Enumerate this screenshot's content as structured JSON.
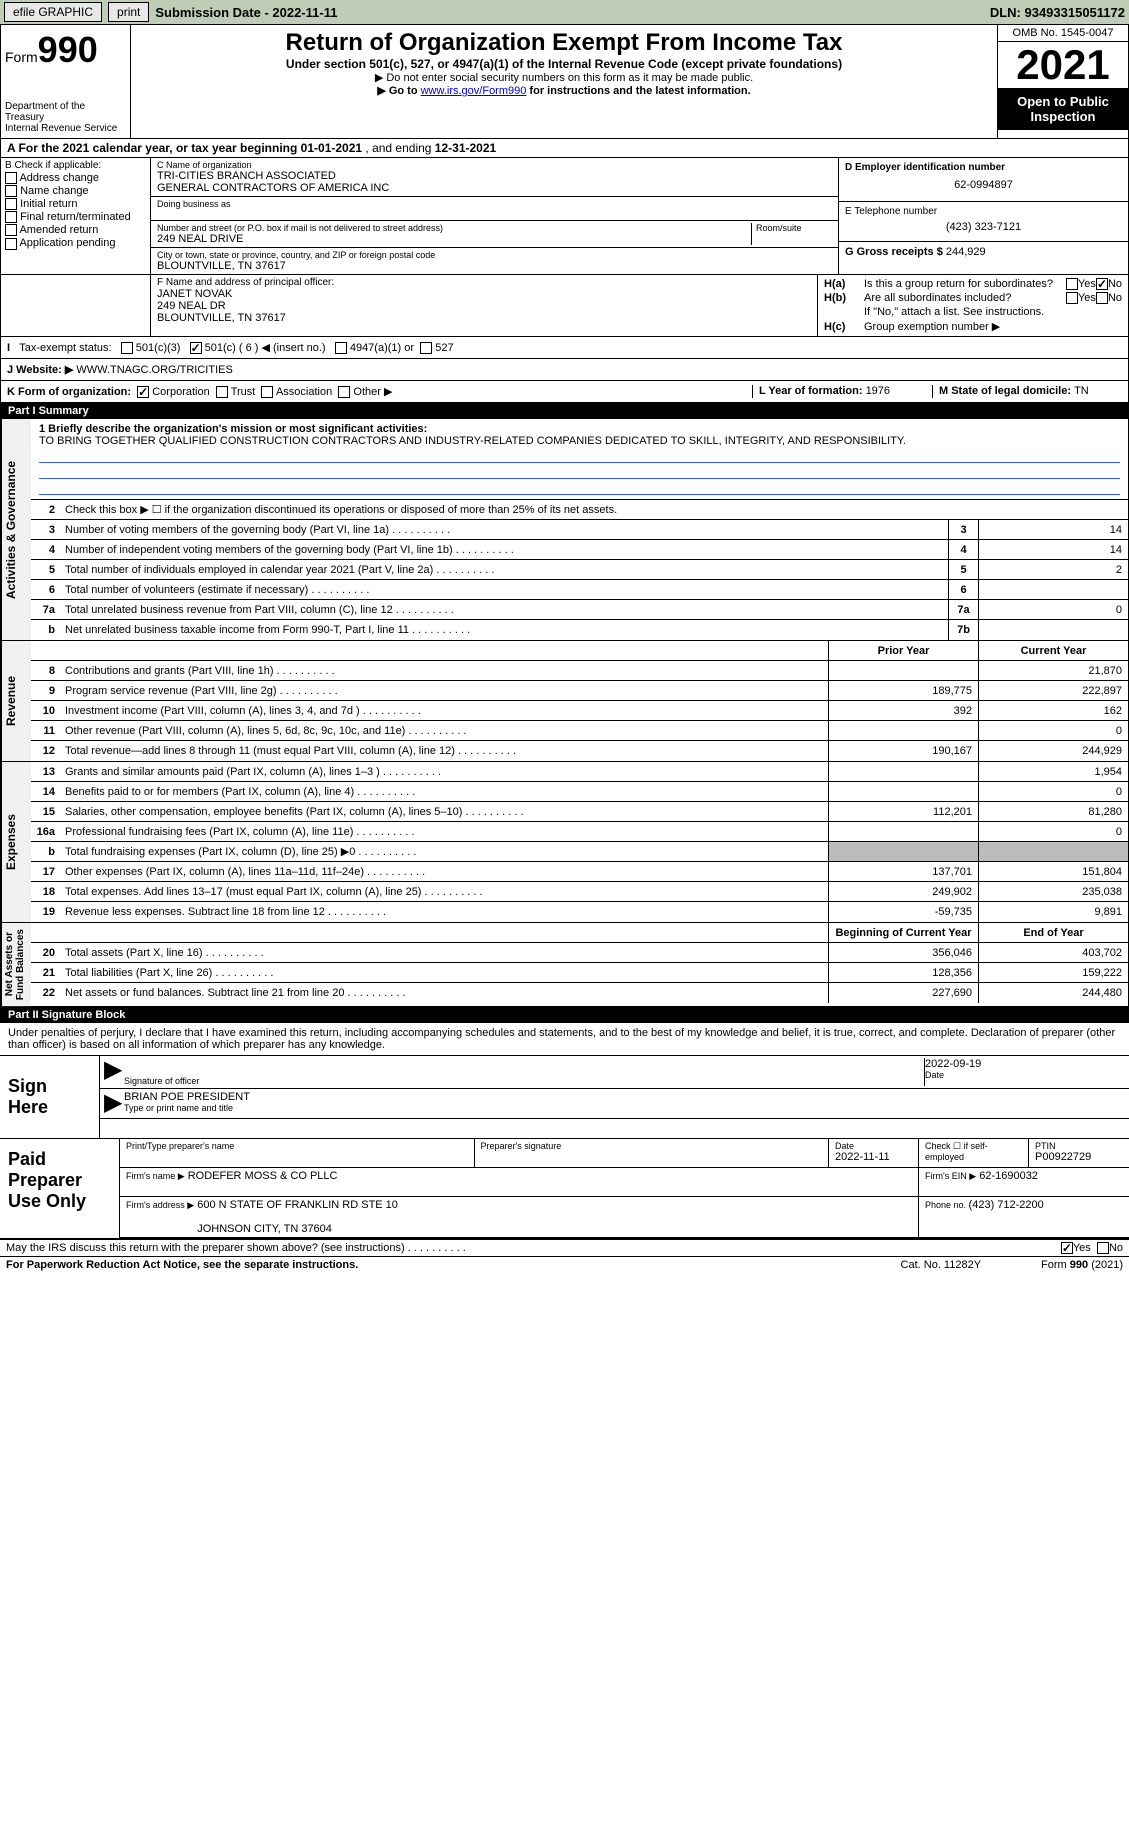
{
  "topbar": {
    "efile": "efile GRAPHIC",
    "print": "print",
    "subdate_lbl": "Submission Date - ",
    "subdate": "2022-11-11",
    "dln_lbl": "DLN: ",
    "dln": "93493315051172"
  },
  "header": {
    "form_lbl": "Form",
    "form_num": "990",
    "dept": "Department of the Treasury\nInternal Revenue Service",
    "title": "Return of Organization Exempt From Income Tax",
    "subtitle": "Under section 501(c), 527, or 4947(a)(1) of the Internal Revenue Code (except private foundations)",
    "note1": "▶ Do not enter social security numbers on this form as it may be made public.",
    "note2_pre": "▶ Go to ",
    "note2_link": "www.irs.gov/Form990",
    "note2_post": " for instructions and the latest information.",
    "omb": "OMB No. 1545-0047",
    "year": "2021",
    "open": "Open to Public\nInspection"
  },
  "rowA": {
    "text_pre": "A For the 2021 calendar year, or tax year beginning ",
    "begin": "01-01-2021",
    "mid": "   , and ending ",
    "end": "12-31-2021"
  },
  "colB": {
    "title": "B Check if applicable:",
    "opts": [
      "Address change",
      "Name change",
      "Initial return",
      "Final return/terminated",
      "Amended return",
      "Application pending"
    ]
  },
  "colC": {
    "name_lbl": "C Name of organization",
    "name": "TRI-CITIES BRANCH ASSOCIATED\nGENERAL CONTRACTORS OF AMERICA INC",
    "dba_lbl": "Doing business as",
    "addr_lbl": "Number and street (or P.O. box if mail is not delivered to street address)",
    "room_lbl": "Room/suite",
    "addr": "249 NEAL DRIVE",
    "city_lbl": "City or town, state or province, country, and ZIP or foreign postal code",
    "city": "BLOUNTVILLE, TN   37617"
  },
  "colDE": {
    "d_lbl": "D Employer identification number",
    "d_val": "62-0994897",
    "e_lbl": "E Telephone number",
    "e_val": "(423) 323-7121",
    "g_lbl": "G Gross receipts $ ",
    "g_val": "244,929"
  },
  "rowF": {
    "f_lbl": "F  Name and address of principal officer:",
    "f_name": "JANET NOVAK",
    "f_addr": "249 NEAL DR\nBLOUNTVILLE, TN   37617",
    "ha_lbl": "H(a)",
    "ha_txt": "Is this a group return for subordinates?",
    "hb_lbl": "H(b)",
    "hb_txt": "Are all subordinates included?",
    "hb_note": "If \"No,\" attach a list. See instructions.",
    "hc_lbl": "H(c)",
    "hc_txt": "Group exemption number ▶",
    "yes": "Yes",
    "no": "No"
  },
  "taxStatus": {
    "i_lbl": "I",
    "label": "Tax-exempt status:",
    "o1": "501(c)(3)",
    "o2": "501(c) ( 6 ) ◀ (insert no.)",
    "o3": "4947(a)(1) or",
    "o4": "527",
    "j_lbl": "J  Website: ▶",
    "j_val": "  WWW.TNAGC.ORG/TRICITIES"
  },
  "rowK": {
    "k_lbl": "K Form of organization:",
    "o1": "Corporation",
    "o2": "Trust",
    "o3": "Association",
    "o4": "Other ▶",
    "l_lbl": "L Year of formation: ",
    "l_val": "1976",
    "m_lbl": "M State of legal domicile: ",
    "m_val": "TN"
  },
  "part1": {
    "title": "Part I      Summary",
    "mission_lbl": "1  Briefly describe the organization's mission or most significant activities:",
    "mission": "TO BRING TOGETHER QUALIFIED CONSTRUCTION CONTRACTORS AND INDUSTRY-RELATED COMPANIES DEDICATED TO SKILL, INTEGRITY, AND RESPONSIBILITY.",
    "line2": "Check this box ▶ ☐  if the organization discontinued its operations or disposed of more than 25% of its net assets.",
    "side_gov": "Activities & Governance",
    "side_rev": "Revenue",
    "side_exp": "Expenses",
    "side_net": "Net Assets or\nFund Balances",
    "lines_gov": [
      {
        "n": "3",
        "d": "Number of voting members of the governing body (Part VI, line 1a)",
        "b": "3",
        "v": "14"
      },
      {
        "n": "4",
        "d": "Number of independent voting members of the governing body (Part VI, line 1b)",
        "b": "4",
        "v": "14"
      },
      {
        "n": "5",
        "d": "Total number of individuals employed in calendar year 2021 (Part V, line 2a)",
        "b": "5",
        "v": "2"
      },
      {
        "n": "6",
        "d": "Total number of volunteers (estimate if necessary)",
        "b": "6",
        "v": ""
      },
      {
        "n": "7a",
        "d": "Total unrelated business revenue from Part VIII, column (C), line 12",
        "b": "7a",
        "v": "0"
      },
      {
        "n": "b",
        "d": "Net unrelated business taxable income from Form 990-T, Part I, line 11",
        "b": "7b",
        "v": ""
      }
    ],
    "col_prior": "Prior Year",
    "col_curr": "Current Year",
    "lines_rev": [
      {
        "n": "8",
        "d": "Contributions and grants (Part VIII, line 1h)",
        "p": "",
        "c": "21,870"
      },
      {
        "n": "9",
        "d": "Program service revenue (Part VIII, line 2g)",
        "p": "189,775",
        "c": "222,897"
      },
      {
        "n": "10",
        "d": "Investment income (Part VIII, column (A), lines 3, 4, and 7d )",
        "p": "392",
        "c": "162"
      },
      {
        "n": "11",
        "d": "Other revenue (Part VIII, column (A), lines 5, 6d, 8c, 9c, 10c, and 11e)",
        "p": "",
        "c": "0"
      },
      {
        "n": "12",
        "d": "Total revenue—add lines 8 through 11 (must equal Part VIII, column (A), line 12)",
        "p": "190,167",
        "c": "244,929"
      }
    ],
    "lines_exp": [
      {
        "n": "13",
        "d": "Grants and similar amounts paid (Part IX, column (A), lines 1–3 )",
        "p": "",
        "c": "1,954"
      },
      {
        "n": "14",
        "d": "Benefits paid to or for members (Part IX, column (A), line 4)",
        "p": "",
        "c": "0"
      },
      {
        "n": "15",
        "d": "Salaries, other compensation, employee benefits (Part IX, column (A), lines 5–10)",
        "p": "112,201",
        "c": "81,280"
      },
      {
        "n": "16a",
        "d": "Professional fundraising fees (Part IX, column (A), line 11e)",
        "p": "",
        "c": "0"
      },
      {
        "n": "b",
        "d": "Total fundraising expenses (Part IX, column (D), line 25) ▶0",
        "p": "SHADE",
        "c": "SHADE"
      },
      {
        "n": "17",
        "d": "Other expenses (Part IX, column (A), lines 11a–11d, 11f–24e)",
        "p": "137,701",
        "c": "151,804"
      },
      {
        "n": "18",
        "d": "Total expenses. Add lines 13–17 (must equal Part IX, column (A), line 25)",
        "p": "249,902",
        "c": "235,038"
      },
      {
        "n": "19",
        "d": "Revenue less expenses. Subtract line 18 from line 12",
        "p": "-59,735",
        "c": "9,891"
      }
    ],
    "col_begin": "Beginning of Current Year",
    "col_end": "End of Year",
    "lines_net": [
      {
        "n": "20",
        "d": "Total assets (Part X, line 16)",
        "p": "356,046",
        "c": "403,702"
      },
      {
        "n": "21",
        "d": "Total liabilities (Part X, line 26)",
        "p": "128,356",
        "c": "159,222"
      },
      {
        "n": "22",
        "d": "Net assets or fund balances. Subtract line 21 from line 20",
        "p": "227,690",
        "c": "244,480"
      }
    ]
  },
  "part2": {
    "title": "Part II     Signature Block",
    "intro": "Under penalties of perjury, I declare that I have examined this return, including accompanying schedules and statements, and to the best of my knowledge and belief, it is true, correct, and complete. Declaration of preparer (other than officer) is based on all information of which preparer has any knowledge.",
    "sign_here": "Sign\nHere",
    "sig_officer": "Signature of officer",
    "sig_date": "2022-09-19",
    "date_lbl": "Date",
    "name_title": "BRIAN POE  PRESIDENT",
    "name_title_lbl": "Type or print name and title",
    "paid": "Paid\nPreparer\nUse Only",
    "pt_name_lbl": "Print/Type preparer's name",
    "pt_sig_lbl": "Preparer's signature",
    "pt_date_lbl": "Date",
    "pt_date": "2022-11-11",
    "pt_check_lbl": "Check ☐ if self-employed",
    "ptin_lbl": "PTIN",
    "ptin": "P00922729",
    "firm_name_lbl": "Firm's name      ▶",
    "firm_name": "RODEFER MOSS & CO PLLC",
    "firm_ein_lbl": "Firm's EIN ▶",
    "firm_ein": "62-1690032",
    "firm_addr_lbl": "Firm's address ▶",
    "firm_addr": "600 N STATE OF FRANKLIN RD STE 10\n\nJOHNSON CITY, TN   37604",
    "phone_lbl": "Phone no. ",
    "phone": "(423) 712-2200",
    "discuss": "May the IRS discuss this return with the preparer shown above? (see instructions)",
    "yes": "Yes",
    "no": "No"
  },
  "footer": {
    "pra": "For Paperwork Reduction Act Notice, see the separate instructions.",
    "cat": "Cat. No. 11282Y",
    "form": "Form 990 (2021)"
  }
}
